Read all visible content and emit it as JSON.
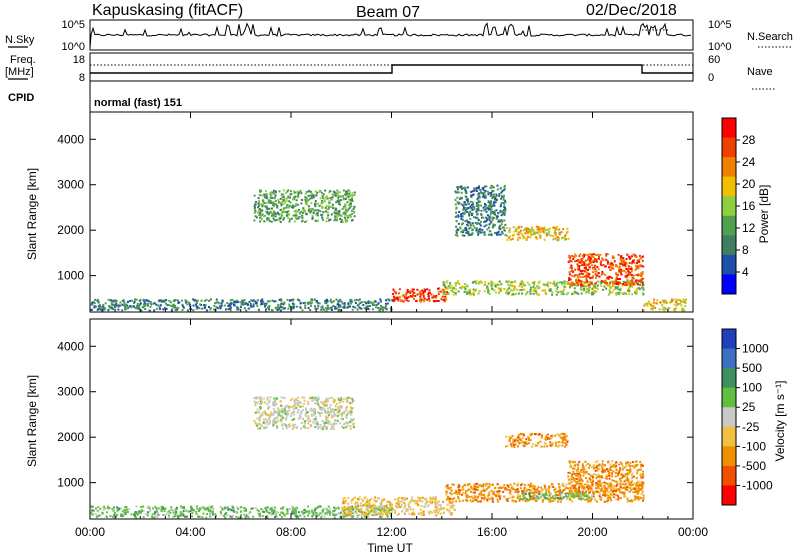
{
  "header": {
    "station": "Kapuskasing (fitACF)",
    "beam": "Beam 07",
    "date": "02/Dec/2018"
  },
  "top_panels": {
    "nsky_label": "N.Sky",
    "nsky_ticks": [
      "10^5",
      "10^0"
    ],
    "nsearch_label": "N.Search",
    "nsearch_ticks": [
      "10^5",
      "10^0"
    ],
    "freq_label_1": "Freq.",
    "freq_label_2": "[MHz]",
    "freq_ticks": [
      "18",
      "8"
    ],
    "nave_label": "Nave",
    "nave_ticks": [
      "60",
      "0"
    ],
    "cpid_label": "CPID",
    "cpid_value": "normal (fast) 151"
  },
  "colors": {
    "power_scale": [
      "#0000ff",
      "#1f4fa8",
      "#3f7f5f",
      "#4fa04f",
      "#8fcf3f",
      "#f0c000",
      "#f08000",
      "#f04000",
      "#ff0000"
    ],
    "velocity_scale": [
      "#1f3fbf",
      "#3f6fbf",
      "#3f8f5f",
      "#5fbf3f",
      "#c8c8c8",
      "#f0c040",
      "#f09000",
      "#f05000",
      "#ff0000"
    ]
  },
  "chart_data": [
    {
      "type": "heatmap",
      "name": "power",
      "ylabel": "Slant Range [km]",
      "yticks": [
        "1000",
        "2000",
        "3000",
        "4000"
      ],
      "ylim": [
        200,
        4600
      ],
      "xticks": [
        "00:00",
        "04:00",
        "08:00",
        "12:00",
        "16:00",
        "20:00",
        "00:00"
      ],
      "colorbar_label": "Power [dB]",
      "colorbar_ticks": [
        "4",
        "8",
        "12",
        "16",
        "20",
        "24",
        "28"
      ],
      "clim": [
        0,
        30
      ],
      "features": [
        {
          "t": [
            0.0,
            12.0
          ],
          "range": [
            250,
            500
          ],
          "level": 8
        },
        {
          "t": [
            12.0,
            14.2
          ],
          "range": [
            450,
            750
          ],
          "level": 27
        },
        {
          "t": [
            6.5,
            10.5
          ],
          "range": [
            2200,
            2900
          ],
          "level": 10
        },
        {
          "t": [
            14.0,
            22.0
          ],
          "range": [
            600,
            900
          ],
          "level": 14
        },
        {
          "t": [
            19.0,
            22.0
          ],
          "range": [
            800,
            1500
          ],
          "level": 26
        },
        {
          "t": [
            16.5,
            19.0
          ],
          "range": [
            1800,
            2100
          ],
          "level": 20
        },
        {
          "t": [
            14.5,
            16.5
          ],
          "range": [
            1900,
            3000
          ],
          "level": 6
        },
        {
          "t": [
            22.0,
            23.7
          ],
          "range": [
            250,
            500
          ],
          "level": 18
        }
      ]
    },
    {
      "type": "heatmap",
      "name": "velocity",
      "ylabel": "Slant Range [km]",
      "yticks": [
        "1000",
        "2000",
        "3000",
        "4000"
      ],
      "ylim": [
        200,
        4600
      ],
      "xticks": [
        "00:00",
        "04:00",
        "08:00",
        "12:00",
        "16:00",
        "20:00",
        "00:00"
      ],
      "xlabel": "Time UT",
      "colorbar_label": "Velocity [m s⁻¹]",
      "colorbar_ticks": [
        "1000",
        "500",
        "100",
        "25",
        "-25",
        "-100",
        "-500",
        "-1000"
      ],
      "features": [
        {
          "t": [
            0.0,
            12.0
          ],
          "range": [
            250,
            500
          ],
          "velocity": 60
        },
        {
          "t": [
            10.0,
            14.5
          ],
          "range": [
            300,
            700
          ],
          "velocity": -80
        },
        {
          "t": [
            6.5,
            10.5
          ],
          "range": [
            2200,
            2900
          ],
          "velocity": 0
        },
        {
          "t": [
            14.0,
            22.0
          ],
          "range": [
            600,
            1000
          ],
          "velocity": -120
        },
        {
          "t": [
            19.0,
            22.0
          ],
          "range": [
            800,
            1500
          ],
          "velocity": -150
        },
        {
          "t": [
            16.5,
            19.0
          ],
          "range": [
            1800,
            2100
          ],
          "velocity": -300
        },
        {
          "t": [
            17.0,
            20.0
          ],
          "range": [
            650,
            800
          ],
          "velocity": 80
        }
      ]
    }
  ]
}
